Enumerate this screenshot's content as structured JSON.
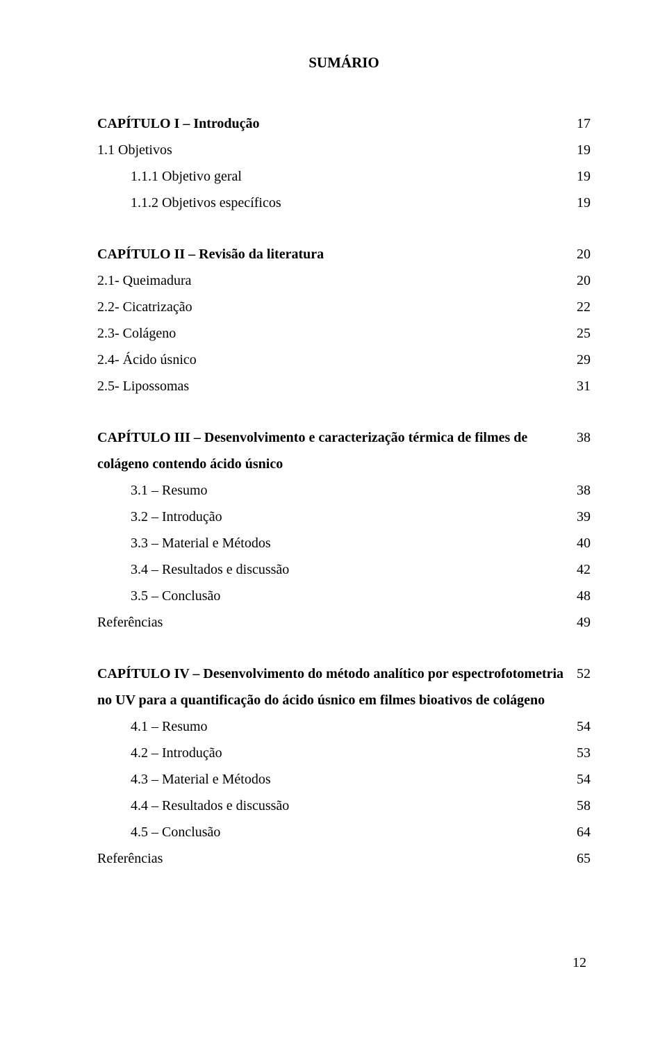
{
  "title": "SUMÁRIO",
  "sections": [
    {
      "kind": "row",
      "bold": true,
      "indent": 0,
      "label": "CAPÍTULO I – Introdução",
      "page": "17"
    },
    {
      "kind": "row",
      "bold": false,
      "indent": 0,
      "label": "1.1 Objetivos",
      "page": "19"
    },
    {
      "kind": "row",
      "bold": false,
      "indent": 1,
      "label": "1.1.1 Objetivo geral",
      "page": "19"
    },
    {
      "kind": "row",
      "bold": false,
      "indent": 1,
      "label": "1.1.2 Objetivos específicos",
      "page": "19"
    },
    {
      "kind": "gap"
    },
    {
      "kind": "row",
      "bold": true,
      "indent": 0,
      "label": "CAPÍTULO II – Revisão da literatura",
      "page": "20"
    },
    {
      "kind": "row",
      "bold": false,
      "indent": 0,
      "label": "2.1- Queimadura",
      "page": "20"
    },
    {
      "kind": "row",
      "bold": false,
      "indent": 0,
      "label": "2.2- Cicatrização",
      "page": "22"
    },
    {
      "kind": "row",
      "bold": false,
      "indent": 0,
      "label": "2.3- Colágeno",
      "page": "25"
    },
    {
      "kind": "row",
      "bold": false,
      "indent": 0,
      "label": "2.4- Ácido úsnico",
      "page": "29"
    },
    {
      "kind": "row",
      "bold": false,
      "indent": 0,
      "label": "2.5- Lipossomas",
      "page": "31"
    },
    {
      "kind": "gap"
    },
    {
      "kind": "multi",
      "page": "38",
      "line1_bold": "CAPÍTULO III – Desenvolvimento e caracterização térmica de filmes de",
      "line2_bold": "colágeno contendo ácido úsnico"
    },
    {
      "kind": "row",
      "bold": false,
      "indent": 2,
      "label": "3.1 – Resumo",
      "page": "38"
    },
    {
      "kind": "row",
      "bold": false,
      "indent": 2,
      "label": "3.2 – Introdução",
      "page": "39"
    },
    {
      "kind": "row",
      "bold": false,
      "indent": 2,
      "label": "3.3 – Material e Métodos",
      "page": "40"
    },
    {
      "kind": "row",
      "bold": false,
      "indent": 2,
      "label": "3.4 – Resultados e discussão",
      "page": "42"
    },
    {
      "kind": "row",
      "bold": false,
      "indent": 2,
      "label": "3.5 – Conclusão",
      "page": "48"
    },
    {
      "kind": "row",
      "bold": false,
      "indent": 0,
      "label": "Referências",
      "page": "49"
    },
    {
      "kind": "gap"
    },
    {
      "kind": "multi",
      "page": "52",
      "line1_bold": "CAPÍTULO IV – Desenvolvimento do método analítico por espectrofotometria",
      "line2_bold": "no UV para a quantificação do ácido úsnico em filmes bioativos de colágeno"
    },
    {
      "kind": "row",
      "bold": false,
      "indent": 2,
      "label": "4.1 – Resumo",
      "page": "54"
    },
    {
      "kind": "row",
      "bold": false,
      "indent": 2,
      "label": "4.2 – Introdução",
      "page": "53"
    },
    {
      "kind": "row",
      "bold": false,
      "indent": 2,
      "label": "4.3 – Material e Métodos",
      "page": "54"
    },
    {
      "kind": "row",
      "bold": false,
      "indent": 2,
      "label": "4.4 – Resultados e discussão",
      "page": "58"
    },
    {
      "kind": "row",
      "bold": false,
      "indent": 2,
      "label": "4.5 – Conclusão",
      "page": "64"
    },
    {
      "kind": "row",
      "bold": false,
      "indent": 0,
      "label": "Referências",
      "page": "65"
    }
  ],
  "page_number": "12"
}
